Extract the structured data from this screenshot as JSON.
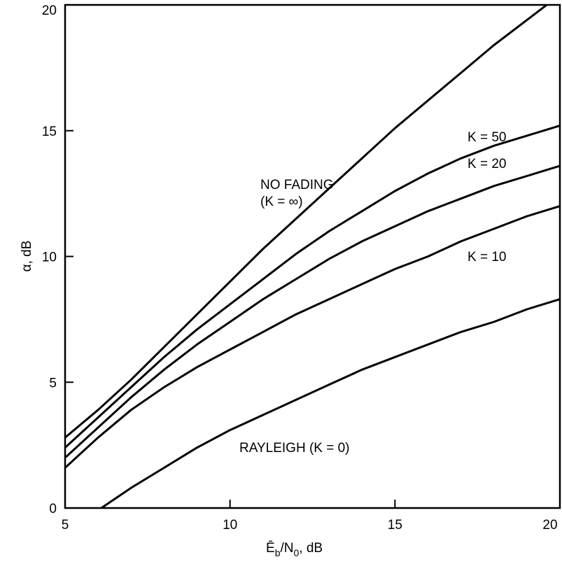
{
  "chart_data": {
    "type": "line",
    "xlabel": "Ē",
    "xlabel_sub": "b",
    "xlabel_mid": "/N",
    "xlabel_sub2": "0",
    "xlabel_tail": ", dB",
    "ylabel": "α, dB",
    "xlim": [
      5,
      20
    ],
    "ylim": [
      0,
      20
    ],
    "xticks": [
      5,
      10,
      15,
      20
    ],
    "yticks": [
      0,
      5,
      10,
      15,
      20
    ],
    "grid": false,
    "series": [
      {
        "name": "NO FADING (K = ∞)",
        "x": [
          5,
          6,
          7,
          8,
          9,
          10,
          11,
          12,
          13,
          14,
          15,
          16,
          17,
          18,
          19,
          20
        ],
        "y": [
          2.8,
          3.9,
          5.1,
          6.4,
          7.7,
          9.0,
          10.3,
          11.5,
          12.7,
          13.9,
          15.1,
          16.2,
          17.3,
          18.4,
          19.4,
          20.4
        ]
      },
      {
        "name": "K = 50",
        "x": [
          5,
          6,
          7,
          8,
          9,
          10,
          11,
          12,
          13,
          14,
          15,
          16,
          17,
          18,
          19,
          20
        ],
        "y": [
          2.4,
          3.6,
          4.8,
          6.0,
          7.1,
          8.1,
          9.1,
          10.1,
          11.0,
          11.8,
          12.6,
          13.3,
          13.9,
          14.4,
          14.8,
          15.2
        ]
      },
      {
        "name": "K = 20",
        "x": [
          5,
          6,
          7,
          8,
          9,
          10,
          11,
          12,
          13,
          14,
          15,
          16,
          17,
          18,
          19,
          20
        ],
        "y": [
          2.0,
          3.2,
          4.4,
          5.5,
          6.5,
          7.4,
          8.3,
          9.1,
          9.9,
          10.6,
          11.2,
          11.8,
          12.3,
          12.8,
          13.2,
          13.6
        ]
      },
      {
        "name": "K = 10",
        "x": [
          5,
          6,
          7,
          8,
          9,
          10,
          11,
          12,
          13,
          14,
          15,
          16,
          17,
          18,
          19,
          20
        ],
        "y": [
          1.6,
          2.8,
          3.9,
          4.8,
          5.6,
          6.3,
          7.0,
          7.7,
          8.3,
          8.9,
          9.5,
          10.0,
          10.6,
          11.1,
          11.6,
          12.0
        ]
      },
      {
        "name": "RAYLEIGH (K = 0)",
        "x": [
          6.1,
          7,
          8,
          9,
          10,
          11,
          12,
          13,
          14,
          15,
          16,
          17,
          18,
          19,
          20
        ],
        "y": [
          0.0,
          0.8,
          1.6,
          2.4,
          3.1,
          3.7,
          4.3,
          4.9,
          5.5,
          6.0,
          6.5,
          7.0,
          7.4,
          7.9,
          8.3
        ]
      }
    ],
    "annotations": {
      "no_fading_line1": "NO FADING",
      "no_fading_line2": "(K = ∞)",
      "k50": "K = 50",
      "k20": "K = 20",
      "k10": "K = 10",
      "rayleigh": "RAYLEIGH (K = 0)"
    }
  }
}
